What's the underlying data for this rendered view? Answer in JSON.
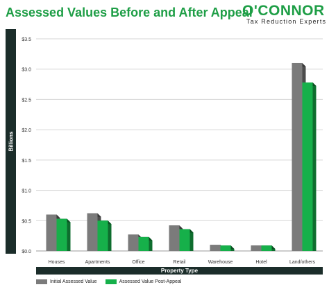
{
  "title": "Assessed Values Before and After Appeal",
  "logo": {
    "name": "O'CONNOR",
    "tagline": "Tax Reduction Experts"
  },
  "colors": {
    "initial": "#7b7b7b",
    "post": "#16b04a",
    "brand": "#1e9e46",
    "band": "#1b2d2a"
  },
  "chart_data": {
    "type": "bar",
    "title": "Assessed Values Before and After Appeal",
    "xlabel": "Property Type",
    "ylabel": "Billions",
    "ylim": [
      0,
      3.5
    ],
    "yticks": [
      "$0.0",
      "$0.5",
      "$1.0",
      "$1.5",
      "$2.0",
      "$2.5",
      "$3.0",
      "$3.5"
    ],
    "grid": true,
    "legend_position": "bottom",
    "categories": [
      "Houses",
      "Apartments",
      "Office",
      "Retail",
      "Warehouse",
      "Hotel",
      "Land/others"
    ],
    "series": [
      {
        "name": "Initial Assessed Value",
        "values": [
          0.6,
          0.62,
          0.27,
          0.42,
          0.1,
          0.09,
          3.1
        ]
      },
      {
        "name": "Assessed Value Post-Appeal",
        "values": [
          0.53,
          0.5,
          0.23,
          0.36,
          0.09,
          0.09,
          2.78
        ]
      }
    ]
  }
}
